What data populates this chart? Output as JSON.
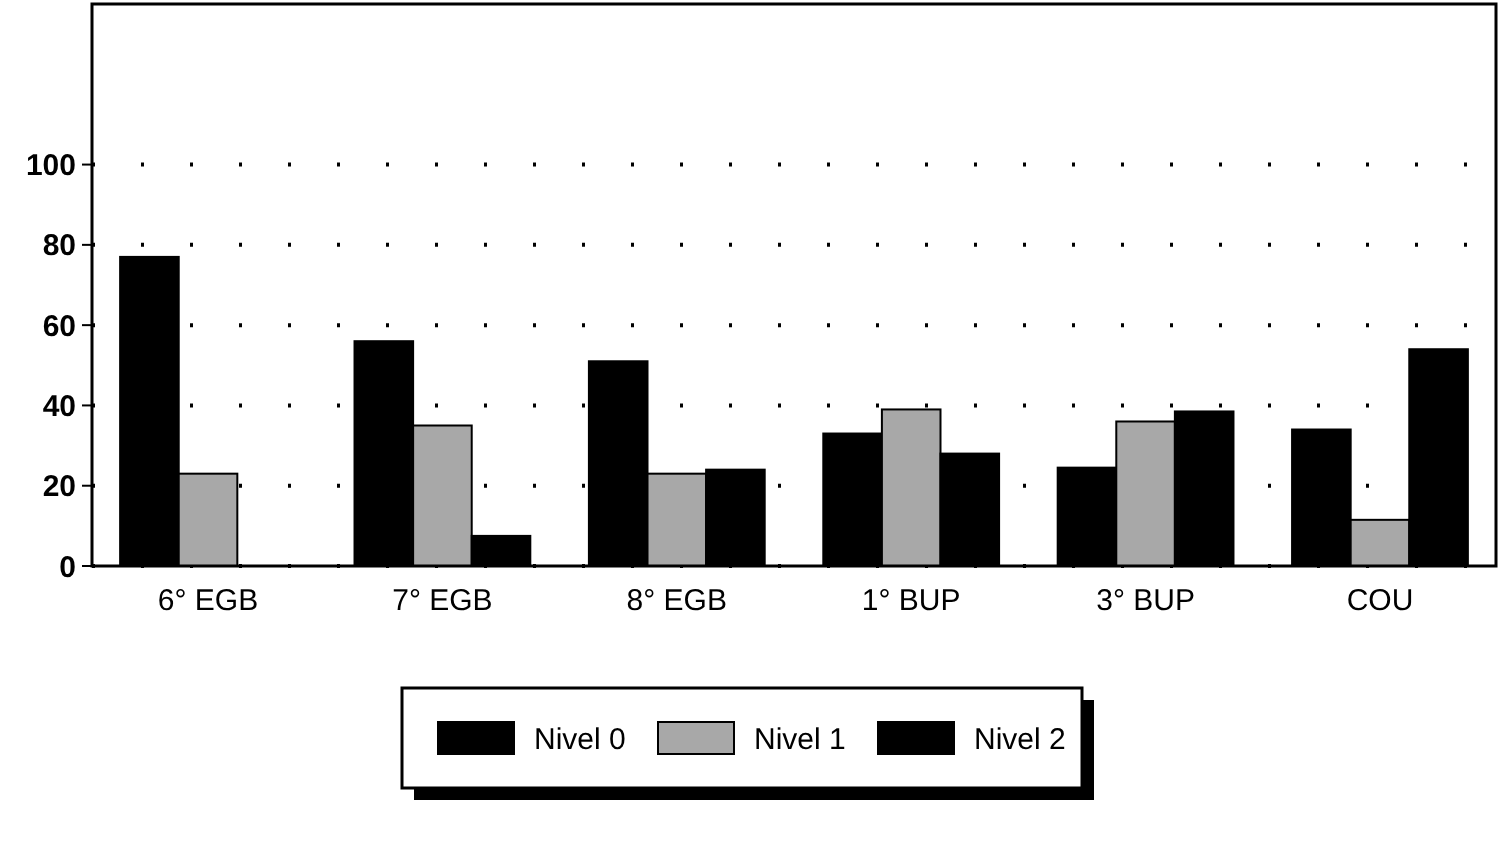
{
  "chart_data": {
    "type": "bar",
    "categories": [
      "6° EGB",
      "7° EGB",
      "8° EGB",
      "1° BUP",
      "3° BUP",
      "COU"
    ],
    "series": [
      {
        "name": "Nivel 0",
        "color": "#000000",
        "values": [
          77,
          56,
          51,
          33,
          24.5,
          34
        ]
      },
      {
        "name": "Nivel 1",
        "color": "#a8a8a8",
        "values": [
          23,
          35,
          23,
          39,
          36,
          11.5
        ]
      },
      {
        "name": "Nivel 2",
        "color": "#000000",
        "values": [
          0,
          7.5,
          24,
          28,
          38.5,
          54
        ]
      }
    ],
    "ylim": [
      0,
      140
    ],
    "yticks": [
      0,
      20,
      40,
      60,
      80,
      100
    ],
    "grid": "y",
    "legend": "bottom"
  }
}
